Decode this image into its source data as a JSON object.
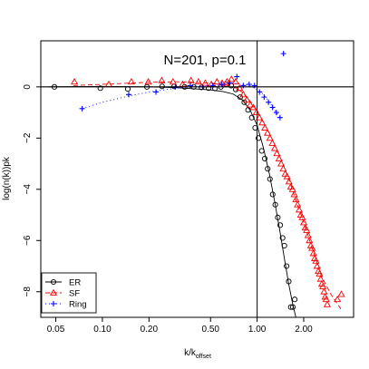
{
  "chart_data": {
    "type": "scatter",
    "title": "N=201, p=0.1",
    "xlabel": "k/k",
    "xlabel_subscript": "offset",
    "ylabel": "log(n(k))pk",
    "x_scale": "log",
    "xlim": [
      0.04,
      4.2
    ],
    "ylim": [
      -9.0,
      1.8
    ],
    "x_ticks": [
      0.05,
      0.1,
      0.2,
      0.5,
      1.0,
      2.0
    ],
    "x_tick_labels": [
      "0.05",
      "0.10",
      "0.20",
      "0.50",
      "1.00",
      "2.00"
    ],
    "y_ticks": [
      0,
      -2,
      -4,
      -6,
      -8
    ],
    "y_tick_labels": [
      "0",
      "−2",
      "−4",
      "−6",
      "−8"
    ],
    "reference_lines": {
      "hline_y": 0,
      "vline_x": 1.0
    },
    "legend_position": "bottom-left",
    "series": [
      {
        "name": "ER",
        "color": "#000000",
        "marker": "circle",
        "line": "solid",
        "points": [
          [
            0.049,
            0.0
          ],
          [
            0.097,
            -0.05
          ],
          [
            0.146,
            -0.08
          ],
          [
            0.194,
            0.0
          ],
          [
            0.243,
            0.02
          ],
          [
            0.291,
            0.02
          ],
          [
            0.34,
            0.0
          ],
          [
            0.389,
            0.0
          ],
          [
            0.437,
            -0.02
          ],
          [
            0.486,
            -0.05
          ],
          [
            0.534,
            -0.06
          ],
          [
            0.583,
            0.0
          ],
          [
            0.631,
            0.1
          ],
          [
            0.68,
            0.05
          ],
          [
            0.728,
            -0.1
          ],
          [
            0.777,
            -0.4
          ],
          [
            0.826,
            -0.6
          ],
          [
            0.874,
            -0.9
          ],
          [
            0.923,
            -1.2
          ],
          [
            0.971,
            -1.6
          ],
          [
            1.02,
            -2.0
          ],
          [
            1.07,
            -2.5
          ],
          [
            1.12,
            -2.8
          ],
          [
            1.17,
            -3.2
          ],
          [
            1.21,
            -3.6
          ],
          [
            1.26,
            -4.2
          ],
          [
            1.31,
            -4.6
          ],
          [
            1.36,
            -5.1
          ],
          [
            1.41,
            -5.4
          ],
          [
            1.46,
            -5.9
          ],
          [
            1.5,
            -6.2
          ],
          [
            1.55,
            -7.0
          ],
          [
            1.6,
            -7.6
          ],
          [
            1.65,
            -8.6
          ],
          [
            1.7,
            -8.6
          ],
          [
            1.75,
            -8.3
          ]
        ],
        "curve": [
          [
            0.045,
            0.0
          ],
          [
            0.1,
            0.02
          ],
          [
            0.2,
            0.0
          ],
          [
            0.3,
            -0.03
          ],
          [
            0.4,
            -0.08
          ],
          [
            0.5,
            -0.12
          ],
          [
            0.6,
            -0.18
          ],
          [
            0.7,
            -0.28
          ],
          [
            0.8,
            -0.5
          ],
          [
            0.9,
            -0.9
          ],
          [
            1.0,
            -1.5
          ],
          [
            1.1,
            -2.4
          ],
          [
            1.2,
            -3.4
          ],
          [
            1.3,
            -4.5
          ],
          [
            1.4,
            -5.6
          ],
          [
            1.5,
            -6.7
          ],
          [
            1.6,
            -7.7
          ],
          [
            1.7,
            -8.5
          ],
          [
            1.78,
            -9.0
          ]
        ]
      },
      {
        "name": "SF",
        "color": "#ff0000",
        "marker": "triangle",
        "line": "dashed",
        "points": [
          [
            0.066,
            0.2
          ],
          [
            0.11,
            0.1
          ],
          [
            0.154,
            0.2
          ],
          [
            0.198,
            0.2
          ],
          [
            0.242,
            0.25
          ],
          [
            0.286,
            0.2
          ],
          [
            0.33,
            0.1
          ],
          [
            0.374,
            0.25
          ],
          [
            0.418,
            0.2
          ],
          [
            0.462,
            0.15
          ],
          [
            0.506,
            0.1
          ],
          [
            0.55,
            0.2
          ],
          [
            0.594,
            0.15
          ],
          [
            0.638,
            0.2
          ],
          [
            0.682,
            0.3
          ],
          [
            0.726,
            0.2
          ],
          [
            0.77,
            -0.05
          ],
          [
            0.814,
            -0.3
          ],
          [
            0.858,
            -0.5
          ],
          [
            0.902,
            -0.7
          ],
          [
            0.946,
            -0.8
          ],
          [
            0.99,
            -1.0
          ],
          [
            1.034,
            -1.2
          ],
          [
            1.078,
            -1.4
          ],
          [
            1.122,
            -1.6
          ],
          [
            1.166,
            -1.8
          ],
          [
            1.21,
            -2.0
          ],
          [
            1.254,
            -2.2
          ],
          [
            1.298,
            -2.4
          ],
          [
            1.342,
            -2.6
          ],
          [
            1.386,
            -2.8
          ],
          [
            1.43,
            -3.0
          ],
          [
            1.474,
            -3.2
          ],
          [
            1.518,
            -3.4
          ],
          [
            1.562,
            -3.5
          ],
          [
            1.606,
            -3.7
          ],
          [
            1.65,
            -3.9
          ],
          [
            1.694,
            -4.0
          ],
          [
            1.738,
            -4.2
          ],
          [
            1.782,
            -4.4
          ],
          [
            1.826,
            -4.6
          ],
          [
            1.87,
            -4.8
          ],
          [
            1.914,
            -5.0
          ],
          [
            1.958,
            -5.1
          ],
          [
            2.002,
            -5.3
          ],
          [
            2.046,
            -5.5
          ],
          [
            2.09,
            -5.6
          ],
          [
            2.134,
            -5.8
          ],
          [
            2.178,
            -6.0
          ],
          [
            2.222,
            -6.2
          ],
          [
            2.266,
            -6.3
          ],
          [
            2.31,
            -6.5
          ],
          [
            2.354,
            -6.7
          ],
          [
            2.398,
            -6.8
          ],
          [
            2.442,
            -7.0
          ],
          [
            2.486,
            -7.2
          ],
          [
            2.53,
            -7.3
          ],
          [
            2.574,
            -7.5
          ],
          [
            2.618,
            -7.7
          ],
          [
            2.662,
            -7.8
          ],
          [
            2.706,
            -8.0
          ],
          [
            2.75,
            -8.2
          ],
          [
            2.794,
            -8.3
          ],
          [
            2.838,
            -8.5
          ],
          [
            3.3,
            -8.3
          ],
          [
            3.5,
            -8.1
          ]
        ],
        "curve": [
          [
            0.065,
            0.05
          ],
          [
            0.1,
            0.1
          ],
          [
            0.2,
            0.18
          ],
          [
            0.3,
            0.2
          ],
          [
            0.4,
            0.18
          ],
          [
            0.5,
            0.14
          ],
          [
            0.6,
            0.1
          ],
          [
            0.7,
            0.02
          ],
          [
            0.8,
            -0.2
          ],
          [
            0.9,
            -0.55
          ],
          [
            1.0,
            -0.95
          ],
          [
            1.2,
            -1.8
          ],
          [
            1.4,
            -2.7
          ],
          [
            1.6,
            -3.6
          ],
          [
            1.8,
            -4.5
          ],
          [
            2.0,
            -5.3
          ],
          [
            2.3,
            -6.4
          ],
          [
            2.6,
            -7.4
          ],
          [
            3.0,
            -8.1
          ],
          [
            3.5,
            -8.7
          ]
        ]
      },
      {
        "name": "Ring",
        "color": "#0000ff",
        "marker": "plus",
        "line": "dotted",
        "points": [
          [
            0.074,
            -0.85
          ],
          [
            0.148,
            -0.3
          ],
          [
            0.222,
            -0.2
          ],
          [
            0.296,
            0.0
          ],
          [
            0.37,
            0.05
          ],
          [
            0.444,
            0.0
          ],
          [
            0.518,
            0.05
          ],
          [
            0.592,
            0.1
          ],
          [
            0.666,
            0.15
          ],
          [
            0.74,
            0.4
          ],
          [
            0.814,
            0.05
          ],
          [
            0.888,
            0.1
          ],
          [
            0.962,
            0.05
          ],
          [
            1.036,
            -0.2
          ],
          [
            1.11,
            -0.4
          ],
          [
            1.184,
            -0.6
          ],
          [
            1.258,
            -0.8
          ],
          [
            1.332,
            -1.0
          ],
          [
            1.406,
            -1.2
          ],
          [
            1.48,
            1.3
          ]
        ],
        "curve": [
          [
            0.074,
            -0.85
          ],
          [
            0.1,
            -0.6
          ],
          [
            0.15,
            -0.35
          ],
          [
            0.2,
            -0.2
          ],
          [
            0.3,
            -0.05
          ],
          [
            0.4,
            0.02
          ],
          [
            0.5,
            0.05
          ],
          [
            0.6,
            0.08
          ],
          [
            0.7,
            0.15
          ],
          [
            0.8,
            0.1
          ],
          [
            0.9,
            0.05
          ],
          [
            1.0,
            -0.1
          ],
          [
            1.1,
            -0.3
          ],
          [
            1.2,
            -0.6
          ],
          [
            1.3,
            -0.9
          ],
          [
            1.4,
            -1.2
          ]
        ]
      }
    ]
  }
}
